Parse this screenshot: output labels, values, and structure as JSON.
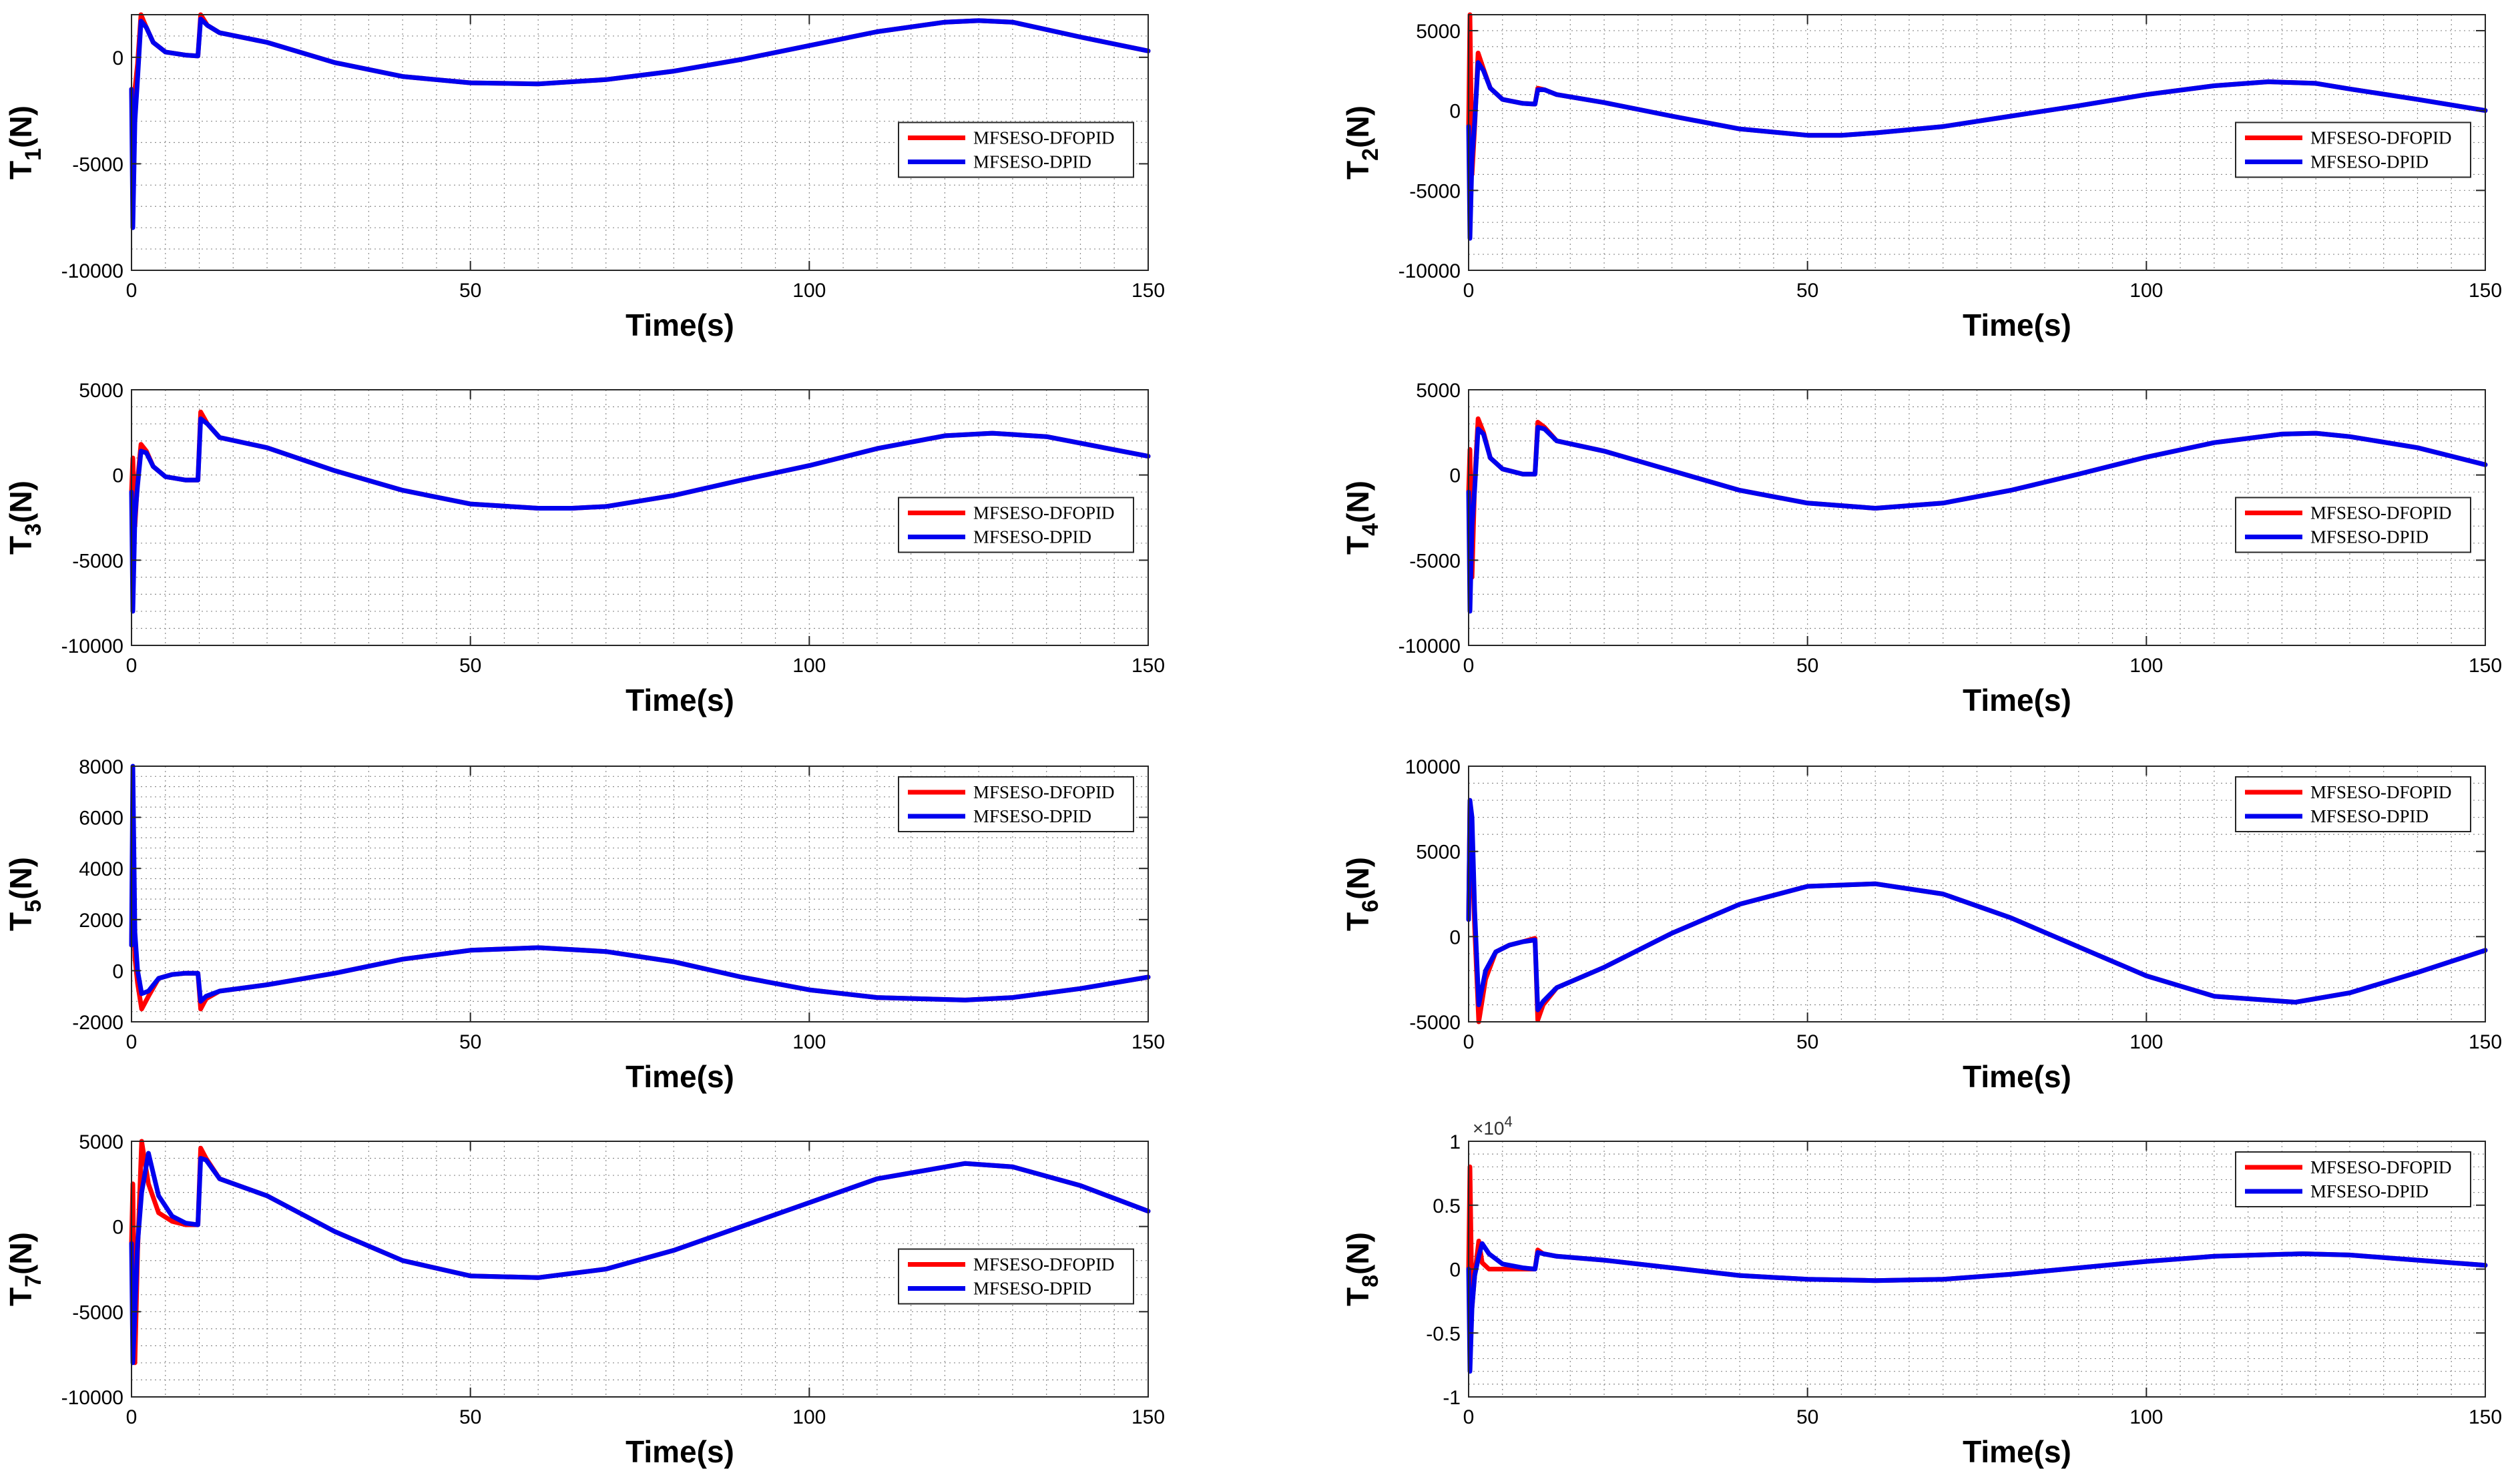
{
  "figure": {
    "legend_entries": [
      "MFSESO-DFOPID",
      "MFSESO-DPID"
    ]
  },
  "colors": {
    "dfopid": "#ff0000",
    "dpid": "#0000ee"
  },
  "chart_data": [
    {
      "type": "line",
      "id": "T1",
      "ylabel_main": "T",
      "ylabel_sub": "1",
      "ylabel_unit": "(N)",
      "xlabel": "Time(s)",
      "xlim": [
        0,
        150
      ],
      "ylim": [
        -10000,
        2000
      ],
      "yticks": [
        -10000,
        -5000,
        0
      ],
      "ytick_labels": [
        "-10000",
        "-5000",
        "0"
      ],
      "xticks": [
        0,
        50,
        100,
        150
      ],
      "xtick_labels": [
        "0",
        "50",
        "100",
        "150"
      ],
      "grid": true,
      "legend": "right",
      "x": [
        0,
        0.2,
        0.5,
        0.9,
        1.4,
        2.2,
        3.2,
        5,
        8,
        9.8,
        10.2,
        11.2,
        13,
        20,
        30,
        40,
        50,
        60,
        70,
        80,
        90,
        100,
        110,
        120,
        125,
        130,
        140,
        150
      ],
      "series": [
        {
          "name": "MFSESO-DFOPID",
          "values": [
            -1500,
            -3800,
            -1500,
            -300,
            2000,
            1400,
            700,
            250,
            100,
            60,
            2000,
            1500,
            1150,
            700,
            -250,
            -900,
            -1200,
            -1250,
            -1050,
            -650,
            -100,
            550,
            1200,
            1650,
            1720,
            1650,
            950,
            300
          ]
        },
        {
          "name": "MFSESO-DPID",
          "values": [
            -1500,
            -8000,
            -3000,
            -1000,
            1700,
            1400,
            700,
            250,
            100,
            60,
            1800,
            1500,
            1150,
            700,
            -250,
            -900,
            -1200,
            -1250,
            -1050,
            -650,
            -100,
            550,
            1200,
            1650,
            1720,
            1650,
            950,
            300
          ]
        }
      ]
    },
    {
      "type": "line",
      "id": "T2",
      "ylabel_main": "T",
      "ylabel_sub": "2",
      "ylabel_unit": "(N)",
      "xlabel": "Time(s)",
      "xlim": [
        0,
        150
      ],
      "ylim": [
        -10000,
        6000
      ],
      "yticks": [
        -10000,
        -5000,
        0,
        5000
      ],
      "ytick_labels": [
        "-10000",
        "-5000",
        "0",
        "5000"
      ],
      "xticks": [
        0,
        50,
        100,
        150
      ],
      "xtick_labels": [
        "0",
        "50",
        "100",
        "150"
      ],
      "grid": true,
      "legend": "right",
      "x": [
        0,
        0.2,
        0.5,
        0.9,
        1.4,
        2.2,
        3.2,
        5,
        8,
        9.8,
        10.2,
        11.2,
        13,
        20,
        30,
        40,
        50,
        55,
        60,
        70,
        80,
        90,
        100,
        110,
        118,
        125,
        130,
        140,
        150
      ],
      "series": [
        {
          "name": "MFSESO-DFOPID",
          "values": [
            -1000,
            6000,
            -4000,
            -1000,
            3600,
            2600,
            1400,
            700,
            450,
            400,
            1400,
            1300,
            1000,
            500,
            -350,
            -1150,
            -1550,
            -1550,
            -1400,
            -1000,
            -350,
            300,
            1000,
            1550,
            1800,
            1700,
            1350,
            700,
            0
          ]
        },
        {
          "name": "MFSESO-DPID",
          "values": [
            -1000,
            -8000,
            -3000,
            -700,
            3000,
            2500,
            1400,
            700,
            450,
            400,
            1300,
            1300,
            1000,
            500,
            -350,
            -1150,
            -1550,
            -1550,
            -1400,
            -1000,
            -350,
            300,
            1000,
            1550,
            1800,
            1700,
            1350,
            700,
            0
          ]
        }
      ]
    },
    {
      "type": "line",
      "id": "T3",
      "ylabel_main": "T",
      "ylabel_sub": "3",
      "ylabel_unit": "(N)",
      "xlabel": "Time(s)",
      "xlim": [
        0,
        150
      ],
      "ylim": [
        -10000,
        5000
      ],
      "yticks": [
        -10000,
        -5000,
        0,
        5000
      ],
      "ytick_labels": [
        "-10000",
        "-5000",
        "0",
        "5000"
      ],
      "xticks": [
        0,
        50,
        100,
        150
      ],
      "xtick_labels": [
        "0",
        "50",
        "100",
        "150"
      ],
      "grid": true,
      "legend": "right",
      "x": [
        0,
        0.2,
        0.5,
        0.9,
        1.4,
        2.2,
        3.2,
        5,
        8,
        9.8,
        10.2,
        11.2,
        13,
        20,
        30,
        40,
        50,
        60,
        65,
        70,
        80,
        90,
        100,
        110,
        120,
        127,
        135,
        150
      ],
      "series": [
        {
          "name": "MFSESO-DFOPID",
          "values": [
            -1000,
            1000,
            -3000,
            -300,
            1800,
            1400,
            500,
            -100,
            -300,
            -300,
            3700,
            3000,
            2200,
            1600,
            250,
            -900,
            -1700,
            -1950,
            -1950,
            -1850,
            -1200,
            -300,
            550,
            1550,
            2300,
            2450,
            2250,
            1100
          ]
        },
        {
          "name": "MFSESO-DPID",
          "values": [
            -1000,
            -8000,
            -2500,
            -600,
            1400,
            1300,
            500,
            -100,
            -300,
            -300,
            3300,
            3000,
            2200,
            1600,
            250,
            -900,
            -1700,
            -1950,
            -1950,
            -1850,
            -1200,
            -300,
            550,
            1550,
            2300,
            2450,
            2250,
            1100
          ]
        }
      ]
    },
    {
      "type": "line",
      "id": "T4",
      "ylabel_main": "T",
      "ylabel_sub": "4",
      "ylabel_unit": "(N)",
      "xlabel": "Time(s)",
      "xlim": [
        0,
        150
      ],
      "ylim": [
        -10000,
        5000
      ],
      "yticks": [
        -10000,
        -5000,
        0,
        5000
      ],
      "ytick_labels": [
        "-10000",
        "-5000",
        "0",
        "5000"
      ],
      "xticks": [
        0,
        50,
        100,
        150
      ],
      "xtick_labels": [
        "0",
        "50",
        "100",
        "150"
      ],
      "grid": true,
      "legend": "right",
      "x": [
        0,
        0.2,
        0.5,
        0.9,
        1.4,
        2.2,
        3.2,
        5,
        8,
        9.8,
        10.2,
        11.2,
        13,
        20,
        30,
        40,
        50,
        60,
        70,
        80,
        90,
        100,
        110,
        120,
        125,
        130,
        140,
        150
      ],
      "series": [
        {
          "name": "MFSESO-DFOPID",
          "values": [
            -1000,
            1500,
            -6000,
            -400,
            3300,
            2500,
            1000,
            350,
            50,
            50,
            3100,
            2800,
            2000,
            1400,
            250,
            -900,
            -1650,
            -1950,
            -1650,
            -900,
            50,
            1050,
            1900,
            2400,
            2450,
            2250,
            1600,
            600
          ]
        },
        {
          "name": "MFSESO-DPID",
          "values": [
            -1000,
            -8000,
            -3000,
            -800,
            2700,
            2400,
            1000,
            350,
            50,
            50,
            2800,
            2700,
            2000,
            1400,
            250,
            -900,
            -1650,
            -1950,
            -1650,
            -900,
            50,
            1050,
            1900,
            2400,
            2450,
            2250,
            1600,
            600
          ]
        }
      ]
    },
    {
      "type": "line",
      "id": "T5",
      "ylabel_main": "T",
      "ylabel_sub": "5",
      "ylabel_unit": "(N)",
      "xlabel": "Time(s)",
      "xlim": [
        0,
        150
      ],
      "ylim": [
        -2000,
        8000
      ],
      "yticks": [
        -2000,
        0,
        2000,
        4000,
        6000,
        8000
      ],
      "ytick_labels": [
        "-2000",
        "0",
        "2000",
        "4000",
        "6000",
        "8000"
      ],
      "xticks": [
        0,
        50,
        100,
        150
      ],
      "xtick_labels": [
        "0",
        "50",
        "100",
        "150"
      ],
      "grid": true,
      "legend": "top-right",
      "x": [
        0,
        0.2,
        0.5,
        0.9,
        1.5,
        2.5,
        4,
        6,
        8,
        9.8,
        10.2,
        11,
        13,
        20,
        30,
        40,
        50,
        60,
        70,
        80,
        90,
        100,
        110,
        123,
        130,
        140,
        150
      ],
      "series": [
        {
          "name": "MFSESO-DFOPID",
          "values": [
            1000,
            4000,
            500,
            -500,
            -1500,
            -1000,
            -300,
            -150,
            -100,
            -100,
            -1500,
            -1100,
            -800,
            -550,
            -100,
            450,
            800,
            900,
            750,
            350,
            -250,
            -750,
            -1050,
            -1150,
            -1050,
            -700,
            -250
          ]
        },
        {
          "name": "MFSESO-DPID",
          "values": [
            1000,
            8000,
            1500,
            0,
            -900,
            -800,
            -300,
            -150,
            -100,
            -100,
            -1200,
            -1000,
            -800,
            -550,
            -100,
            450,
            800,
            900,
            750,
            350,
            -250,
            -750,
            -1050,
            -1150,
            -1050,
            -700,
            -250
          ]
        }
      ]
    },
    {
      "type": "line",
      "id": "T6",
      "ylabel_main": "T",
      "ylabel_sub": "6",
      "ylabel_unit": "(N)",
      "xlabel": "Time(s)",
      "xlim": [
        0,
        150
      ],
      "ylim": [
        -5000,
        10000
      ],
      "yticks": [
        -5000,
        0,
        5000,
        10000
      ],
      "ytick_labels": [
        "-5000",
        "0",
        "5000",
        "10000"
      ],
      "xticks": [
        0,
        50,
        100,
        150
      ],
      "xtick_labels": [
        "0",
        "50",
        "100",
        "150"
      ],
      "grid": true,
      "legend": "top-right",
      "x": [
        0,
        0.2,
        0.5,
        0.9,
        1.5,
        2.5,
        4,
        6,
        8,
        9.8,
        10.2,
        11,
        13,
        20,
        30,
        40,
        50,
        60,
        70,
        80,
        90,
        100,
        110,
        122,
        130,
        140,
        150
      ],
      "series": [
        {
          "name": "MFSESO-DFOPID",
          "values": [
            1000,
            8000,
            5000,
            500,
            -5000,
            -2500,
            -900,
            -500,
            -300,
            -100,
            -4900,
            -4000,
            -3000,
            -1800,
            200,
            1900,
            2950,
            3100,
            2500,
            1100,
            -600,
            -2300,
            -3500,
            -3850,
            -3300,
            -2100,
            -800
          ]
        },
        {
          "name": "MFSESO-DPID",
          "values": [
            1000,
            8000,
            7000,
            1500,
            -4000,
            -2000,
            -900,
            -500,
            -300,
            -200,
            -4300,
            -3800,
            -3000,
            -1800,
            200,
            1900,
            2950,
            3100,
            2500,
            1100,
            -600,
            -2300,
            -3500,
            -3850,
            -3300,
            -2100,
            -800
          ]
        }
      ]
    },
    {
      "type": "line",
      "id": "T7",
      "ylabel_main": "T",
      "ylabel_sub": "7",
      "ylabel_unit": "(N)",
      "xlabel": "Time(s)",
      "xlim": [
        0,
        150
      ],
      "ylim": [
        -10000,
        5000
      ],
      "yticks": [
        -10000,
        -5000,
        0,
        5000
      ],
      "ytick_labels": [
        "-10000",
        "-5000",
        "0",
        "5000"
      ],
      "xticks": [
        0,
        50,
        100,
        150
      ],
      "xtick_labels": [
        "0",
        "50",
        "100",
        "150"
      ],
      "grid": true,
      "legend": "right",
      "x": [
        0,
        0.2,
        0.5,
        0.9,
        1.5,
        2.5,
        4,
        6,
        8,
        9.8,
        10.2,
        11,
        13,
        20,
        30,
        40,
        50,
        60,
        70,
        80,
        90,
        100,
        110,
        123,
        130,
        140,
        150
      ],
      "series": [
        {
          "name": "MFSESO-DFOPID",
          "values": [
            -1000,
            2500,
            -8000,
            -1500,
            5000,
            2500,
            800,
            300,
            100,
            100,
            4600,
            4000,
            2800,
            1800,
            -300,
            -2000,
            -2900,
            -3000,
            -2500,
            -1400,
            0,
            1400,
            2800,
            3700,
            3500,
            2400,
            900
          ]
        },
        {
          "name": "MFSESO-DPID",
          "values": [
            -1000,
            -8000,
            -5000,
            -1000,
            2000,
            4300,
            1800,
            600,
            200,
            100,
            4000,
            3900,
            2800,
            1800,
            -300,
            -2000,
            -2900,
            -3000,
            -2500,
            -1400,
            0,
            1400,
            2800,
            3700,
            3500,
            2400,
            900
          ]
        }
      ]
    },
    {
      "type": "line",
      "id": "T8",
      "ylabel_main": "T",
      "ylabel_sub": "8",
      "ylabel_unit": "(N)",
      "xlabel": "Time(s)",
      "multiplier": "×10^4",
      "xlim": [
        0,
        150
      ],
      "ylim": [
        -1,
        1
      ],
      "yticks": [
        -1,
        -0.5,
        0,
        0.5,
        1
      ],
      "ytick_labels": [
        "-1",
        "-0.5",
        "0",
        "0.5",
        "1"
      ],
      "xticks": [
        0,
        50,
        100,
        150
      ],
      "xtick_labels": [
        "0",
        "50",
        "100",
        "150"
      ],
      "grid": true,
      "legend": "top-right",
      "x": [
        0,
        0.2,
        0.5,
        0.9,
        1.5,
        2,
        3,
        5,
        8,
        9.8,
        10.2,
        11,
        13,
        20,
        30,
        40,
        50,
        60,
        70,
        80,
        90,
        100,
        110,
        123,
        130,
        140,
        150
      ],
      "series": [
        {
          "name": "MFSESO-DFOPID",
          "values": [
            0,
            0.8,
            -0.3,
            -0.05,
            0.22,
            0.05,
            0,
            0,
            0,
            0,
            0.15,
            0.12,
            0.1,
            0.07,
            0.01,
            -0.05,
            -0.08,
            -0.09,
            -0.08,
            -0.04,
            0.01,
            0.06,
            0.1,
            0.12,
            0.11,
            0.07,
            0.03
          ]
        },
        {
          "name": "MFSESO-DPID",
          "values": [
            0,
            -0.8,
            -0.3,
            -0.05,
            0.1,
            0.2,
            0.12,
            0.04,
            0.01,
            0,
            0.13,
            0.12,
            0.1,
            0.07,
            0.01,
            -0.05,
            -0.08,
            -0.09,
            -0.08,
            -0.04,
            0.01,
            0.06,
            0.1,
            0.12,
            0.11,
            0.07,
            0.03
          ]
        }
      ]
    }
  ]
}
